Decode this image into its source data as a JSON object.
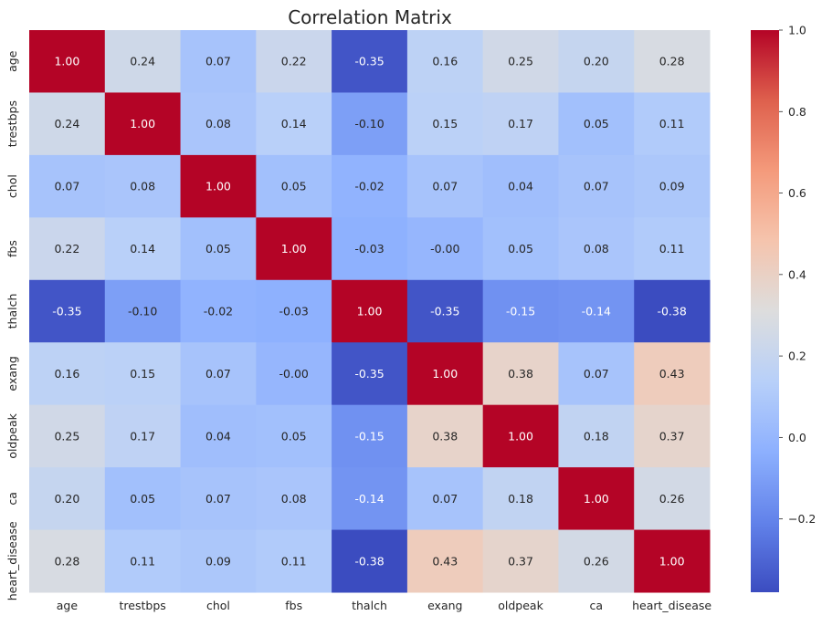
{
  "chart_data": {
    "type": "heatmap",
    "title": "Correlation Matrix",
    "xlabel": "",
    "ylabel": "",
    "colormap": "coolwarm",
    "value_format": "2 decimals",
    "categories": [
      "age",
      "trestbps",
      "chol",
      "fbs",
      "thalch",
      "exang",
      "oldpeak",
      "ca",
      "heart_disease"
    ],
    "values": [
      [
        1.0,
        0.24,
        0.07,
        0.22,
        -0.35,
        0.16,
        0.25,
        0.2,
        0.28
      ],
      [
        0.24,
        1.0,
        0.08,
        0.14,
        -0.1,
        0.15,
        0.17,
        0.05,
        0.11
      ],
      [
        0.07,
        0.08,
        1.0,
        0.05,
        -0.02,
        0.07,
        0.04,
        0.07,
        0.09
      ],
      [
        0.22,
        0.14,
        0.05,
        1.0,
        -0.03,
        -0.0,
        0.05,
        0.08,
        0.11
      ],
      [
        -0.35,
        -0.1,
        -0.02,
        -0.03,
        1.0,
        -0.35,
        -0.15,
        -0.14,
        -0.38
      ],
      [
        0.16,
        0.15,
        0.07,
        -0.0,
        -0.35,
        1.0,
        0.38,
        0.07,
        0.43
      ],
      [
        0.25,
        0.17,
        0.04,
        0.05,
        -0.15,
        0.38,
        1.0,
        0.18,
        0.37
      ],
      [
        0.2,
        0.05,
        0.07,
        0.08,
        -0.14,
        0.07,
        0.18,
        1.0,
        0.26
      ],
      [
        0.28,
        0.11,
        0.09,
        0.11,
        -0.38,
        0.43,
        0.37,
        0.26,
        1.0
      ]
    ],
    "cell_labels": [
      [
        "1.00",
        "0.24",
        "0.07",
        "0.22",
        "-0.35",
        "0.16",
        "0.25",
        "0.20",
        "0.28"
      ],
      [
        "0.24",
        "1.00",
        "0.08",
        "0.14",
        "-0.10",
        "0.15",
        "0.17",
        "0.05",
        "0.11"
      ],
      [
        "0.07",
        "0.08",
        "1.00",
        "0.05",
        "-0.02",
        "0.07",
        "0.04",
        "0.07",
        "0.09"
      ],
      [
        "0.22",
        "0.14",
        "0.05",
        "1.00",
        "-0.03",
        "-0.00",
        "0.05",
        "0.08",
        "0.11"
      ],
      [
        "-0.35",
        "-0.10",
        "-0.02",
        "-0.03",
        "1.00",
        "-0.35",
        "-0.15",
        "-0.14",
        "-0.38"
      ],
      [
        "0.16",
        "0.15",
        "0.07",
        "-0.00",
        "-0.35",
        "1.00",
        "0.38",
        "0.07",
        "0.43"
      ],
      [
        "0.25",
        "0.17",
        "0.04",
        "0.05",
        "-0.15",
        "0.38",
        "1.00",
        "0.18",
        "0.37"
      ],
      [
        "0.20",
        "0.05",
        "0.07",
        "0.08",
        "-0.14",
        "0.07",
        "0.18",
        "1.00",
        "0.26"
      ],
      [
        "0.28",
        "0.11",
        "0.09",
        "0.11",
        "-0.38",
        "0.43",
        "0.37",
        "0.26",
        "1.00"
      ]
    ],
    "colorbar": {
      "range": [
        -0.38,
        1.0
      ],
      "ticks": [
        -0.2,
        0.0,
        0.2,
        0.4,
        0.6,
        0.8,
        1.0
      ],
      "tick_labels": [
        "−0.2",
        "0.0",
        "0.2",
        "0.4",
        "0.6",
        "0.8",
        "1.0"
      ],
      "position": "right"
    },
    "grid": false,
    "legend": "none"
  }
}
